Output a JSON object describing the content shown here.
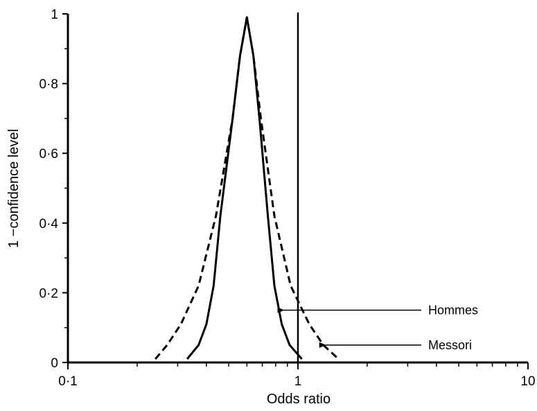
{
  "chart_data": {
    "type": "line",
    "title": "",
    "xlabel": "Odds ratio",
    "ylabel": "1 −confidence level",
    "x_scale": "log",
    "xlim": [
      0.1,
      10
    ],
    "ylim": [
      0,
      1
    ],
    "x_ticks": [
      {
        "value": 0.1,
        "label": "0·1"
      },
      {
        "value": 1,
        "label": "1"
      },
      {
        "value": 10,
        "label": "10"
      }
    ],
    "y_ticks": [
      {
        "value": 0,
        "label": "0"
      },
      {
        "value": 0.2,
        "label": "0·2"
      },
      {
        "value": 0.4,
        "label": "0·4"
      },
      {
        "value": 0.6,
        "label": "0·6"
      },
      {
        "value": 0.8,
        "label": "0·8"
      },
      {
        "value": 1,
        "label": "1"
      }
    ],
    "grid": false,
    "reference_line": {
      "x": 1
    },
    "series": [
      {
        "name": "Hommes",
        "style": "solid",
        "points": [
          [
            0.33,
            0.01
          ],
          [
            0.37,
            0.05
          ],
          [
            0.4,
            0.11
          ],
          [
            0.43,
            0.22
          ],
          [
            0.46,
            0.42
          ],
          [
            0.52,
            0.7
          ],
          [
            0.56,
            0.88
          ],
          [
            0.6,
            0.99
          ],
          [
            0.64,
            0.88
          ],
          [
            0.68,
            0.7
          ],
          [
            0.74,
            0.42
          ],
          [
            0.79,
            0.22
          ],
          [
            0.85,
            0.11
          ],
          [
            0.92,
            0.05
          ],
          [
            1.04,
            0.01
          ]
        ]
      },
      {
        "name": "Messori",
        "style": "dashed",
        "points": [
          [
            0.24,
            0.01
          ],
          [
            0.27,
            0.05
          ],
          [
            0.31,
            0.11
          ],
          [
            0.37,
            0.22
          ],
          [
            0.44,
            0.42
          ],
          [
            0.52,
            0.7
          ],
          [
            0.56,
            0.88
          ],
          [
            0.6,
            0.99
          ],
          [
            0.64,
            0.88
          ],
          [
            0.69,
            0.7
          ],
          [
            0.79,
            0.42
          ],
          [
            0.93,
            0.22
          ],
          [
            1.12,
            0.11
          ],
          [
            1.29,
            0.05
          ],
          [
            1.5,
            0.01
          ]
        ]
      }
    ],
    "annotations": [
      {
        "text": "Hommes",
        "x": 0.85,
        "y": 0.15
      },
      {
        "text": "Messori",
        "x": 1.29,
        "y": 0.05
      }
    ],
    "colors": {
      "line": "#000000",
      "background": "#ffffff"
    }
  }
}
